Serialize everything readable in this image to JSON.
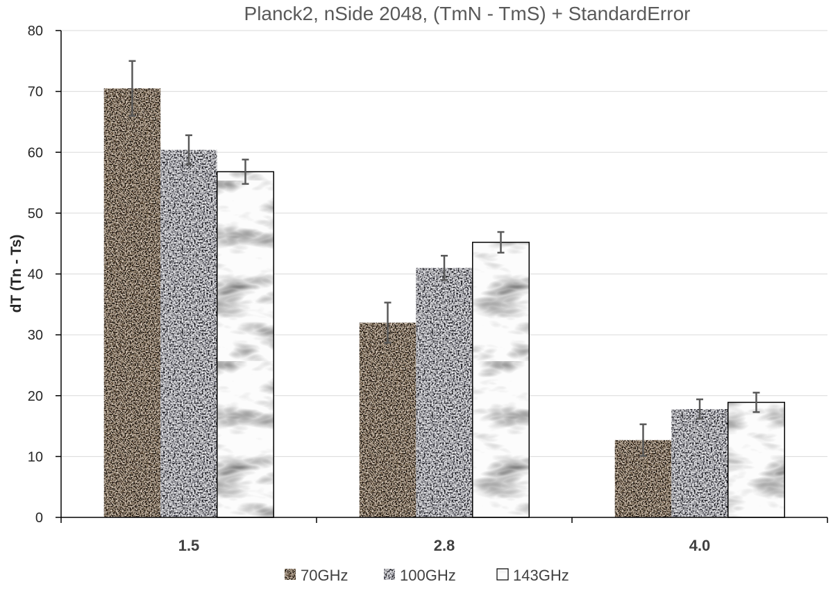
{
  "chart_data": {
    "type": "bar",
    "title": "Planck2,  nSide 2048,  (TmN - TmS) + StandardError",
    "xlabel": "",
    "ylabel": "dT (Tn - Ts)",
    "categories": [
      "1.5",
      "2.8",
      "4.0"
    ],
    "ylim": [
      0,
      80
    ],
    "yticks": [
      0,
      10,
      20,
      30,
      40,
      50,
      60,
      70,
      80
    ],
    "grid": true,
    "legend_position": "bottom",
    "series": [
      {
        "name": "70GHz",
        "values": [
          70.5,
          32.0,
          12.7
        ],
        "errors": [
          4.5,
          3.3,
          2.6
        ],
        "pattern": "brown-granite"
      },
      {
        "name": "100GHz",
        "values": [
          60.4,
          41.0,
          17.8
        ],
        "errors": [
          2.4,
          2.0,
          1.6
        ],
        "pattern": "gray-granite"
      },
      {
        "name": "143GHz",
        "values": [
          56.8,
          45.2,
          18.9
        ],
        "errors": [
          2.0,
          1.7,
          1.6
        ],
        "pattern": "white-marble"
      }
    ]
  }
}
